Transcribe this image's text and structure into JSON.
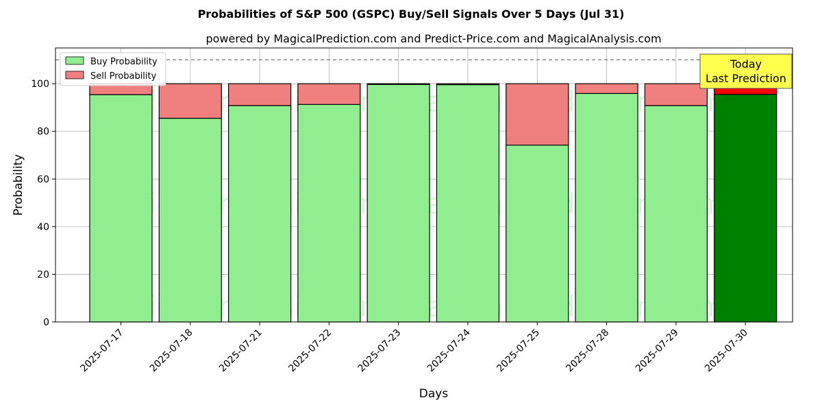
{
  "chart_data": {
    "type": "bar",
    "stacked": true,
    "title": "Probabilities of S&P 500 (GSPC) Buy/Sell Signals Over 5 Days (Jul 31)",
    "subtitle": "powered by MagicalPrediction.com and Predict-Price.com and MagicalAnalysis.com",
    "xlabel": "Days",
    "ylabel": "Probability",
    "ylim": [
      0,
      115
    ],
    "yticks": [
      0,
      20,
      40,
      60,
      80,
      100
    ],
    "grid": true,
    "legend_position": "top-left",
    "reference_line": 110,
    "categories": [
      "2025-07-17",
      "2025-07-18",
      "2025-07-21",
      "2025-07-22",
      "2025-07-23",
      "2025-07-24",
      "2025-07-25",
      "2025-07-28",
      "2025-07-29",
      "2025-07-30"
    ],
    "series": [
      {
        "name": "Buy Probability",
        "color": "#90ee90",
        "values": [
          95.4,
          85.5,
          90.8,
          91.3,
          99.7,
          99.6,
          74.2,
          95.9,
          90.8,
          95.5
        ]
      },
      {
        "name": "Sell Probability",
        "color": "#f08080",
        "values": [
          4.6,
          14.5,
          9.2,
          8.7,
          0.3,
          0.4,
          25.8,
          4.1,
          9.2,
          4.5
        ]
      }
    ],
    "highlight": {
      "index": 9,
      "buy_color": "#008000",
      "sell_color": "#ff0000"
    },
    "annotation": {
      "line1": "Today",
      "line2": "Last Prediction",
      "background": "#ffff4d"
    },
    "watermarks": [
      "MagicalAnalysis.com",
      "MagicalPrediction.com"
    ]
  }
}
